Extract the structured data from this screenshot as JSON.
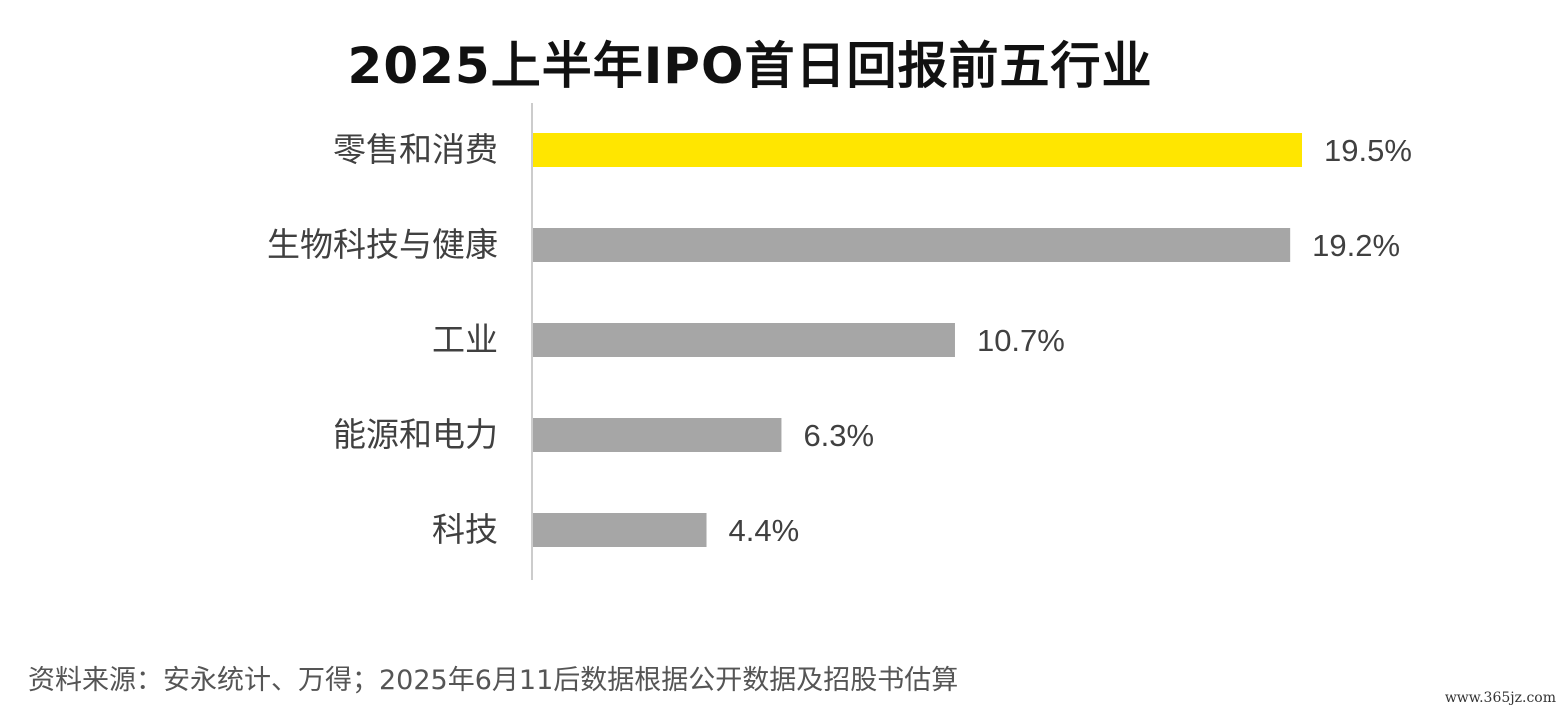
{
  "chart_data": {
    "type": "bar",
    "orientation": "horizontal",
    "title": "2025上半年IPO首日回报前五行业",
    "categories": [
      "零售和消费",
      "生物科技与健康",
      "工业",
      "能源和电力",
      "科技"
    ],
    "values": [
      19.5,
      19.2,
      10.7,
      6.3,
      4.4
    ],
    "data_labels": [
      "19.5%",
      "19.2%",
      "10.7%",
      "6.3%",
      "4.4%"
    ],
    "highlight_index": 0,
    "colors": {
      "highlight": "#FFE600",
      "default": "#A6A6A6",
      "axis": "#CCCCCC"
    },
    "xlim": [
      0,
      19.5
    ],
    "grid": false,
    "legend": "none"
  },
  "footer": {
    "source": "资料来源：安永统计、万得；2025年6月11后数据根据公开数据及招股书估算",
    "watermark": "www.365jz.com"
  }
}
